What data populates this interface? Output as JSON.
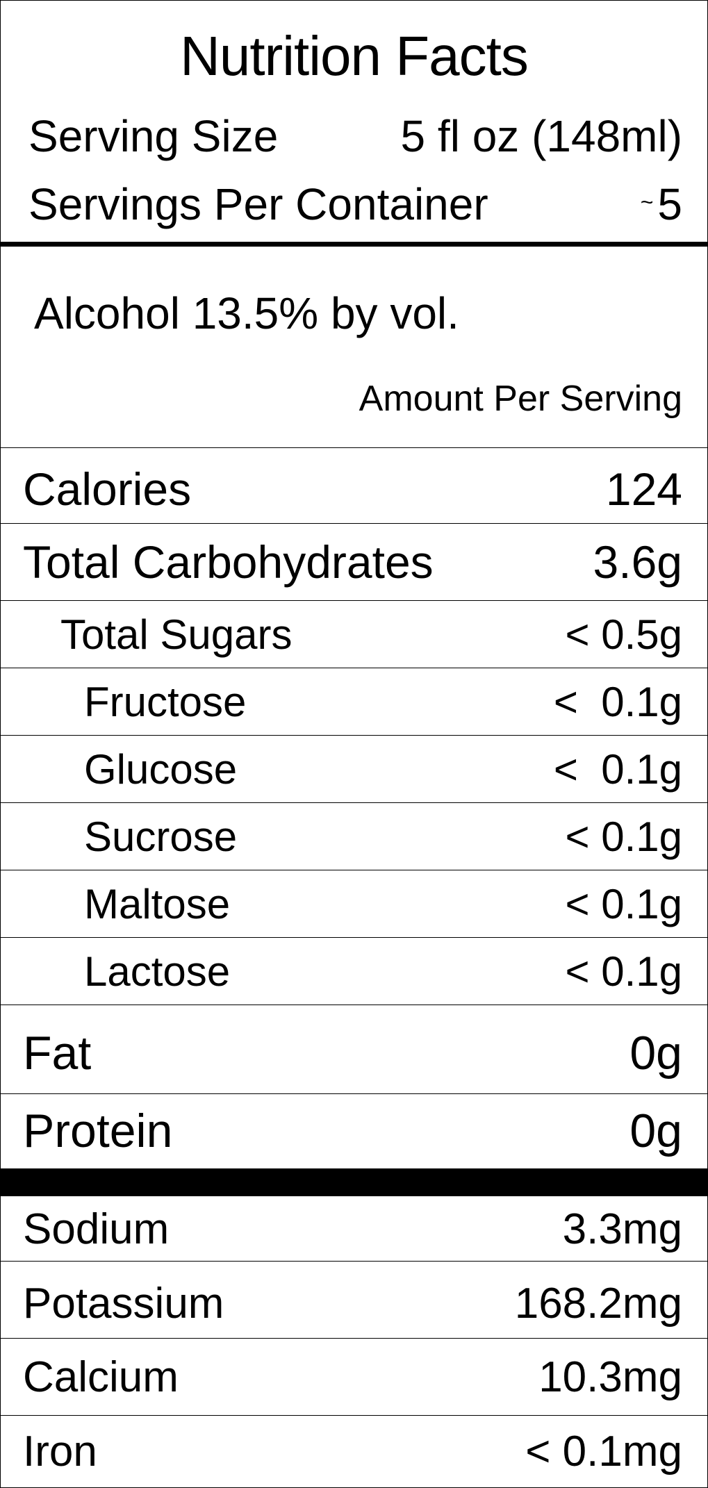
{
  "title": "Nutrition Facts",
  "serving_size": {
    "label": "Serving Size",
    "value": "5 fl oz (148ml)"
  },
  "servings_per_container": {
    "label": "Servings Per Container",
    "approx": "~",
    "value": "5"
  },
  "alcohol": "Alcohol 13.5% by vol.",
  "amount_per_serving": "Amount Per Serving",
  "nutrients": [
    {
      "name": "Calories",
      "amount": "124"
    },
    {
      "name": "Total Carbohydrates",
      "amount": "3.6g"
    },
    {
      "name": "Total Sugars",
      "amount": "< 0.5g"
    },
    {
      "name": "Fructose",
      "amount": "<  0.1g"
    },
    {
      "name": "Glucose",
      "amount": "<  0.1g"
    },
    {
      "name": "Sucrose",
      "amount": "< 0.1g"
    },
    {
      "name": "Maltose",
      "amount": "< 0.1g"
    },
    {
      "name": "Lactose",
      "amount": "< 0.1g"
    },
    {
      "name": "Fat",
      "amount": "0g"
    },
    {
      "name": "Protein",
      "amount": "0g"
    }
  ],
  "minerals": [
    {
      "name": "Sodium",
      "amount": "3.3mg"
    },
    {
      "name": "Potassium",
      "amount": "168.2mg"
    },
    {
      "name": "Calcium",
      "amount": "10.3mg"
    },
    {
      "name": "Iron",
      "amount": "< 0.1mg"
    }
  ]
}
